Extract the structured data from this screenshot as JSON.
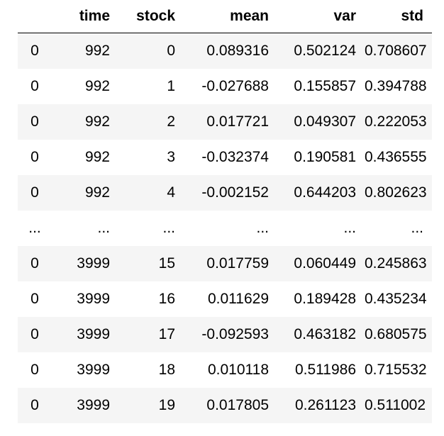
{
  "table": {
    "columns": [
      "",
      "time",
      "stock",
      "mean",
      "var",
      "std"
    ],
    "rows": [
      [
        "0",
        "992",
        "0",
        "0.089316",
        "0.502124",
        "0.708607"
      ],
      [
        "0",
        "992",
        "1",
        "-0.027688",
        "0.155857",
        "0.394788"
      ],
      [
        "0",
        "992",
        "2",
        "0.017721",
        "0.049307",
        "0.222053"
      ],
      [
        "0",
        "992",
        "3",
        "-0.032374",
        "0.190581",
        "0.436555"
      ],
      [
        "0",
        "992",
        "4",
        "-0.002152",
        "0.644203",
        "0.802623"
      ],
      [
        "...",
        "...",
        "...",
        "...",
        "...",
        "..."
      ],
      [
        "0",
        "3999",
        "15",
        "0.017759",
        "0.060449",
        "0.245863"
      ],
      [
        "0",
        "3999",
        "16",
        "0.011629",
        "0.189428",
        "0.435234"
      ],
      [
        "0",
        "3999",
        "17",
        "-0.092593",
        "0.463182",
        "0.680575"
      ],
      [
        "0",
        "3999",
        "18",
        "0.010118",
        "0.511986",
        "0.715532"
      ],
      [
        "0",
        "3999",
        "19",
        "0.017805",
        "0.261123",
        "0.511002"
      ]
    ]
  },
  "colors": {
    "stripe": "#f5f5f5",
    "header_rule": "#000000"
  }
}
